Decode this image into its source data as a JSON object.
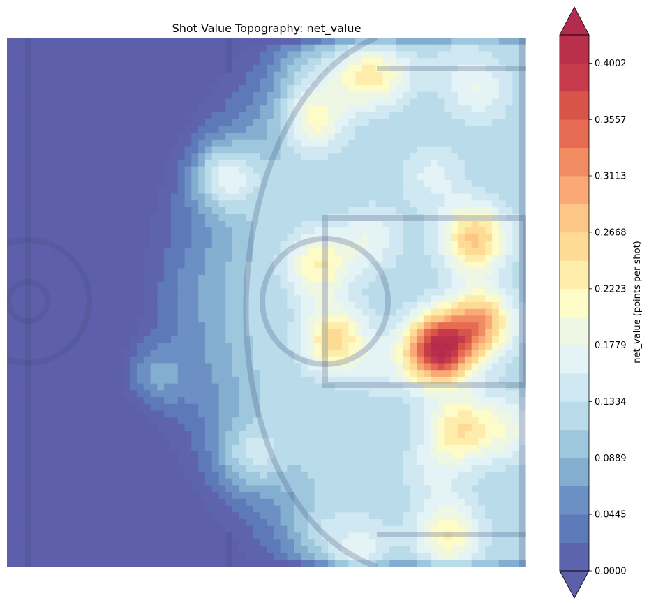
{
  "chart_data": {
    "type": "heatmap",
    "title": "Shot Value Topography: net_value",
    "colorbar": {
      "label": "net_value (points per shot)",
      "min": 0.0,
      "max": 0.4224,
      "extend": "both",
      "tick_values": [
        "0.0000",
        "0.0445",
        "0.0889",
        "0.1334",
        "0.1779",
        "0.2223",
        "0.2668",
        "0.3113",
        "0.3557",
        "0.4002"
      ],
      "levels": [
        0.0,
        0.0222,
        0.0445,
        0.0667,
        0.0889,
        0.1112,
        0.1334,
        0.1556,
        0.1779,
        0.2001,
        0.2223,
        0.2446,
        0.2668,
        0.289,
        0.3113,
        0.3335,
        0.3557,
        0.378,
        0.4002,
        0.4224
      ],
      "colors": [
        "#5e63ad",
        "#5e79b8",
        "#6c8fc4",
        "#84aed0",
        "#9ec7dd",
        "#b9dbea",
        "#d0e8f1",
        "#e4f3f5",
        "#eef6e4",
        "#fdfbc8",
        "#feecaa",
        "#fddb94",
        "#fcc687",
        "#f9a876",
        "#f18b62",
        "#e76b52",
        "#d75449",
        "#c63a4b",
        "#b8304c"
      ],
      "under_color": "#5e5faa",
      "over_color": "#b52b4d"
    },
    "hotspots": [
      {
        "x": 0.83,
        "y": 0.59,
        "value": 0.41
      },
      {
        "x": 0.9,
        "y": 0.38,
        "value": 0.27
      },
      {
        "x": 0.91,
        "y": 0.54,
        "value": 0.29
      },
      {
        "x": 0.63,
        "y": 0.57,
        "value": 0.25
      },
      {
        "x": 0.6,
        "y": 0.43,
        "value": 0.22
      },
      {
        "x": 0.42,
        "y": 0.26,
        "value": 0.22
      },
      {
        "x": 0.59,
        "y": 0.15,
        "value": 0.21
      },
      {
        "x": 0.72,
        "y": 0.07,
        "value": 0.2
      },
      {
        "x": 0.66,
        "y": 0.06,
        "value": 0.18
      },
      {
        "x": 0.7,
        "y": 0.38,
        "value": 0.17
      },
      {
        "x": 0.82,
        "y": 0.26,
        "value": 0.16
      },
      {
        "x": 0.87,
        "y": 0.74,
        "value": 0.23
      },
      {
        "x": 0.91,
        "y": 0.1,
        "value": 0.17
      },
      {
        "x": 0.85,
        "y": 0.94,
        "value": 0.22
      },
      {
        "x": 0.68,
        "y": 0.98,
        "value": 0.19
      },
      {
        "x": 0.6,
        "y": 0.94,
        "value": 0.16
      },
      {
        "x": 0.47,
        "y": 0.79,
        "value": 0.18
      },
      {
        "x": 0.28,
        "y": 0.64,
        "value": 0.18
      },
      {
        "x": 0.35,
        "y": 0.49,
        "value": 0.12
      },
      {
        "x": 0.57,
        "y": 0.06,
        "value": 0.15
      },
      {
        "x": 0.86,
        "y": 0.05,
        "value": 0.13
      },
      {
        "x": 0.82,
        "y": 0.82,
        "value": 0.15
      },
      {
        "x": 0.96,
        "y": 0.74,
        "value": 0.18
      },
      {
        "x": 0.72,
        "y": 0.63,
        "value": 0.14
      }
    ]
  }
}
